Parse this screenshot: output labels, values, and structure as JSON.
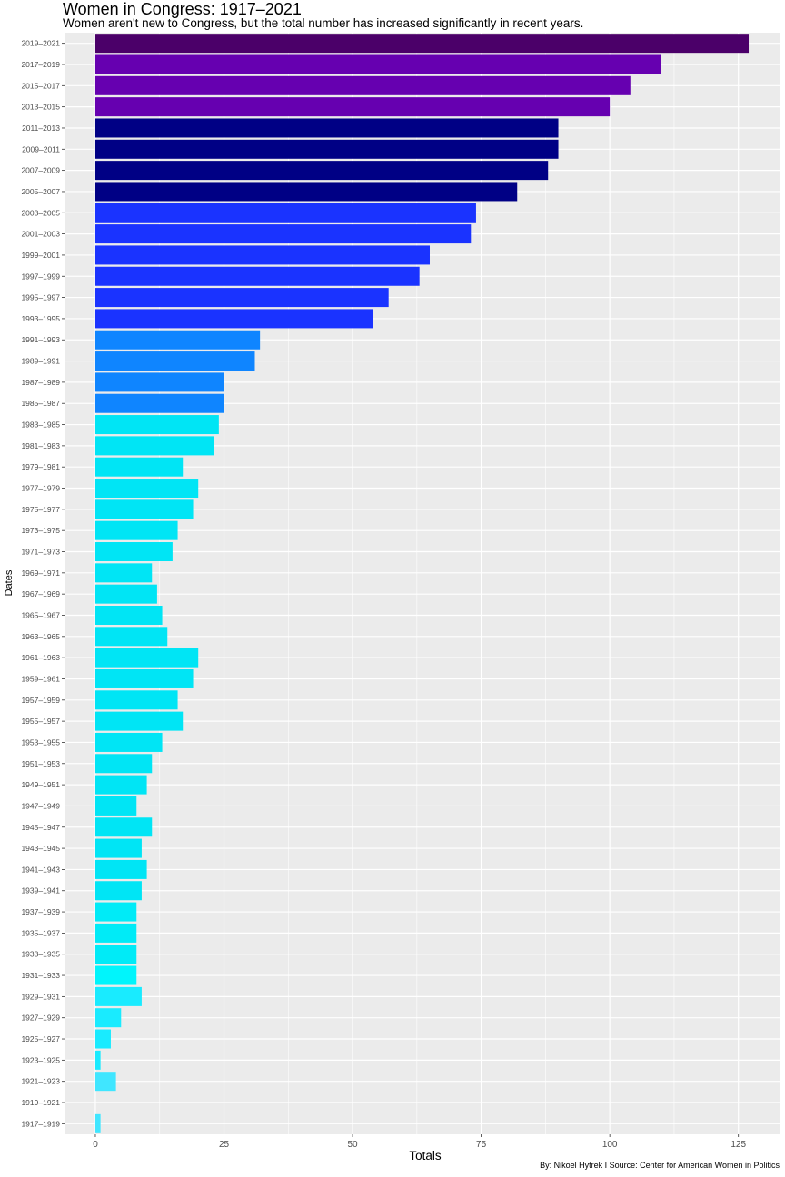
{
  "chart_data": {
    "type": "bar",
    "orientation": "horizontal",
    "title": "Women in Congress: 1917–2021",
    "subtitle": "Women aren't new to Congress, but the total number has increased significantly in recent years.",
    "xlabel": "Totals",
    "ylabel": "Dates",
    "caption": "By: Nikoel Hytrek I Source: Center for American Women in Politics",
    "xlim": [
      -6,
      133
    ],
    "xticks": [
      0,
      25,
      50,
      75,
      100,
      125
    ],
    "grid": true,
    "legend": "none",
    "categories": [
      "2019–2021",
      "2017–2019",
      "2015–2017",
      "2013–2015",
      "2011–2013",
      "2009–2011",
      "2007–2009",
      "2005–2007",
      "2003–2005",
      "2001–2003",
      "1999–2001",
      "1997–1999",
      "1995–1997",
      "1993–1995",
      "1991–1993",
      "1989–1991",
      "1987–1989",
      "1985–1987",
      "1983–1985",
      "1981–1983",
      "1979–1981",
      "1977–1979",
      "1975–1977",
      "1973–1975",
      "1971–1973",
      "1969–1971",
      "1967–1969",
      "1965–1967",
      "1963–1965",
      "1961–1963",
      "1959–1961",
      "1957–1959",
      "1955–1957",
      "1953–1955",
      "1951–1953",
      "1949–1951",
      "1947–1949",
      "1945–1947",
      "1943–1945",
      "1941–1943",
      "1939–1941",
      "1937–1939",
      "1935–1937",
      "1933–1935",
      "1931–1933",
      "1929–1931",
      "1927–1929",
      "1925–1927",
      "1923–1925",
      "1921–1923",
      "1919–1921",
      "1917–1919"
    ],
    "values": [
      127,
      110,
      104,
      100,
      90,
      90,
      88,
      82,
      74,
      73,
      65,
      63,
      57,
      54,
      32,
      31,
      25,
      25,
      24,
      23,
      17,
      20,
      19,
      16,
      15,
      11,
      12,
      13,
      14,
      20,
      19,
      16,
      17,
      13,
      11,
      10,
      8,
      11,
      9,
      10,
      9,
      8,
      8,
      8,
      8,
      9,
      5,
      3,
      1,
      4,
      0,
      1
    ],
    "colors": [
      "#4b0069",
      "#6600b0",
      "#6600b0",
      "#6600b0",
      "#000085",
      "#000085",
      "#000085",
      "#000085",
      "#1a33ff",
      "#1a33ff",
      "#1a33ff",
      "#1a33ff",
      "#1a33ff",
      "#1a33ff",
      "#0f85ff",
      "#0f85ff",
      "#0f85ff",
      "#0f85ff",
      "#00e5f5",
      "#00e5f5",
      "#00e5f5",
      "#00e5f5",
      "#00e5f5",
      "#00e5f5",
      "#00e5f5",
      "#00e5f5",
      "#00e5f5",
      "#00e5f5",
      "#00e5f5",
      "#00e5f5",
      "#00e5f5",
      "#00e5f5",
      "#00e5f5",
      "#00e5f5",
      "#00e5f5",
      "#00e5f5",
      "#00e5f5",
      "#00e5f5",
      "#00e5f5",
      "#00e5f5",
      "#00e5f5",
      "#00ebf7",
      "#00ebf7",
      "#00ebf7",
      "#00f5fc",
      "#19ebff",
      "#19ebff",
      "#19ebff",
      "#19ebff",
      "#40e6ff",
      "#40e6ff",
      "#40e6ff"
    ],
    "panel_background": "#ebebeb",
    "gridline_color": "#ffffff",
    "axis_text_color": "#4d4d4d"
  }
}
